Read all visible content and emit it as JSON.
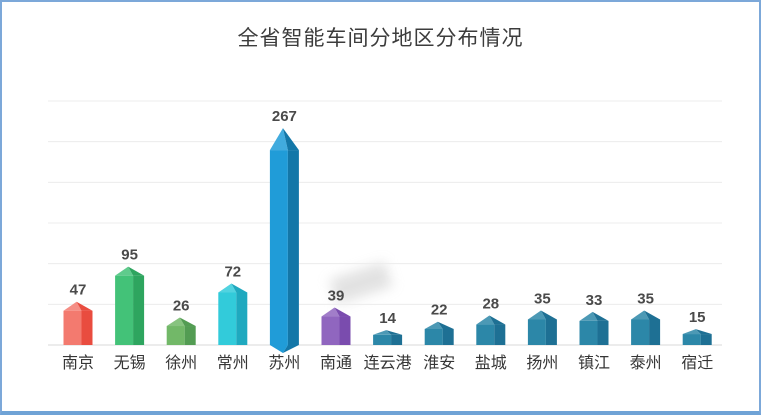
{
  "frame": {
    "border_color": "#7CA8D9",
    "background": "#ffffff"
  },
  "chart_data": {
    "type": "bar",
    "title": "全省智能车间分地区分布情况",
    "categories": [
      "南京",
      "无锡",
      "徐州",
      "常州",
      "苏州",
      "南通",
      "连云港",
      "淮安",
      "盐城",
      "扬州",
      "镇江",
      "泰州",
      "宿迁"
    ],
    "values": [
      47,
      95,
      26,
      72,
      267,
      39,
      14,
      22,
      28,
      35,
      33,
      35,
      15
    ],
    "bar_colors": [
      {
        "front": "#F37A6F",
        "side": "#E94C3F"
      },
      {
        "front": "#43C278",
        "side": "#2EA55F"
      },
      {
        "front": "#72B868",
        "side": "#539C53"
      },
      {
        "front": "#32CBDA",
        "side": "#1FA9BF"
      },
      {
        "front": "#209CD8",
        "side": "#1377A8"
      },
      {
        "front": "#9066BF",
        "side": "#7A4CAE"
      },
      {
        "front": "#2C87A8",
        "side": "#1E7094"
      },
      {
        "front": "#2C87A8",
        "side": "#1E7094"
      },
      {
        "front": "#2C87A8",
        "side": "#1E7094"
      },
      {
        "front": "#2C87A8",
        "side": "#1E7094"
      },
      {
        "front": "#2C87A8",
        "side": "#1E7094"
      },
      {
        "front": "#2C87A8",
        "side": "#1E7094"
      },
      {
        "front": "#2C87A8",
        "side": "#1E7094"
      }
    ],
    "grid_color": "#ececec",
    "axis_color": "#d8d8d8",
    "value_label_color": "#4a4a4a",
    "category_label_color": "#363636",
    "xlabel": "",
    "ylabel": "",
    "ylim": [
      0,
      300
    ],
    "grid": true,
    "legend": "none",
    "style": "3d-prism-bars",
    "value_labels": true
  }
}
